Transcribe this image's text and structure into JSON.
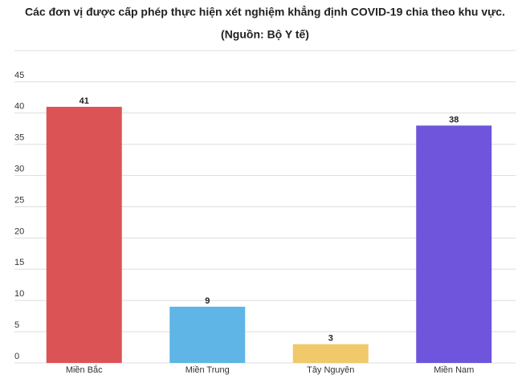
{
  "chart_data": {
    "type": "bar",
    "title": "Các đơn vị được cấp phép thực hiện xét nghiệm khẳng định COVID-19 chia theo khu vực.",
    "subtitle": "(Nguồn: Bộ Y tế)",
    "categories": [
      "Miền Bắc",
      "Miền Trung",
      "Tây Nguyên",
      "Miền Nam"
    ],
    "values": [
      41,
      9,
      3,
      38
    ],
    "colors": [
      "#dc5356",
      "#5fb5e5",
      "#efc96a",
      "#6e55db"
    ],
    "ylim": [
      0,
      50
    ],
    "yticks": [
      0,
      5,
      10,
      15,
      20,
      25,
      30,
      35,
      40,
      45
    ],
    "grid": true
  }
}
